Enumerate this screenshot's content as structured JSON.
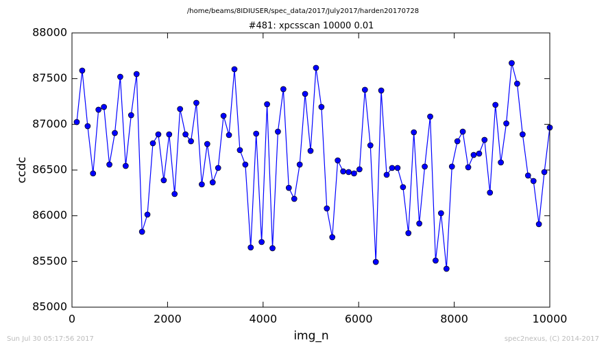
{
  "chart_data": {
    "type": "line",
    "suptitle": "/home/beams/8IDIUSER/spec_data/2017/July2017/harden20170728",
    "title": "#481: xpcsscan 10000 0.01",
    "xlabel": "img_n",
    "ylabel": "ccdc",
    "timestamp": "Sun Jul 30 05:17:56 2017",
    "credit": "spec2nexus, (C) 2014-2017",
    "xlim": [
      0,
      10000
    ],
    "xticks": [
      0,
      2000,
      4000,
      6000,
      8000,
      10000
    ],
    "ylim": [
      85000,
      88000
    ],
    "yticks": [
      85000,
      85500,
      86000,
      86500,
      87000,
      87500,
      88000
    ],
    "x": [
      100,
      214,
      328,
      441,
      555,
      669,
      783,
      897,
      1010,
      1124,
      1238,
      1352,
      1466,
      1579,
      1693,
      1807,
      1921,
      2034,
      2148,
      2262,
      2376,
      2490,
      2603,
      2717,
      2831,
      2945,
      3059,
      3172,
      3286,
      3400,
      3514,
      3628,
      3741,
      3855,
      3969,
      4083,
      4197,
      4310,
      4424,
      4538,
      4652,
      4766,
      4879,
      4993,
      5107,
      5221,
      5334,
      5448,
      5562,
      5676,
      5790,
      5903,
      6017,
      6131,
      6245,
      6359,
      6472,
      6586,
      6700,
      6814,
      6928,
      7041,
      7155,
      7269,
      7383,
      7497,
      7610,
      7724,
      7838,
      7952,
      8066,
      8179,
      8293,
      8407,
      8521,
      8634,
      8748,
      8862,
      8976,
      9090,
      9203,
      9317,
      9431,
      9545,
      9659,
      9772,
      9886,
      10000
    ],
    "series": [
      {
        "color": "#0000ff",
        "values": [
          87025,
          87588,
          86980,
          86463,
          87160,
          87190,
          86560,
          86905,
          87520,
          86545,
          87100,
          87550,
          85825,
          86013,
          86793,
          86890,
          86388,
          86890,
          86238,
          87168,
          86890,
          86815,
          87235,
          86343,
          86785,
          86365,
          86523,
          87093,
          86883,
          87603,
          86718,
          86560,
          85653,
          86898,
          85713,
          87220,
          85645,
          86920,
          87385,
          86305,
          86185,
          86560,
          87333,
          86710,
          87618,
          87190,
          86080,
          85765,
          86605,
          86485,
          86478,
          86463,
          86508,
          87378,
          86770,
          85495,
          87370,
          86448,
          86523,
          86523,
          86313,
          85810,
          86913,
          85915,
          86538,
          87085,
          85510,
          86028,
          85420,
          86538,
          86815,
          86920,
          86530,
          86665,
          86680,
          86830,
          86253,
          87213,
          86583,
          87010,
          87670,
          87445,
          86890,
          86440,
          86380,
          85908,
          86478,
          86965
        ]
      }
    ]
  }
}
